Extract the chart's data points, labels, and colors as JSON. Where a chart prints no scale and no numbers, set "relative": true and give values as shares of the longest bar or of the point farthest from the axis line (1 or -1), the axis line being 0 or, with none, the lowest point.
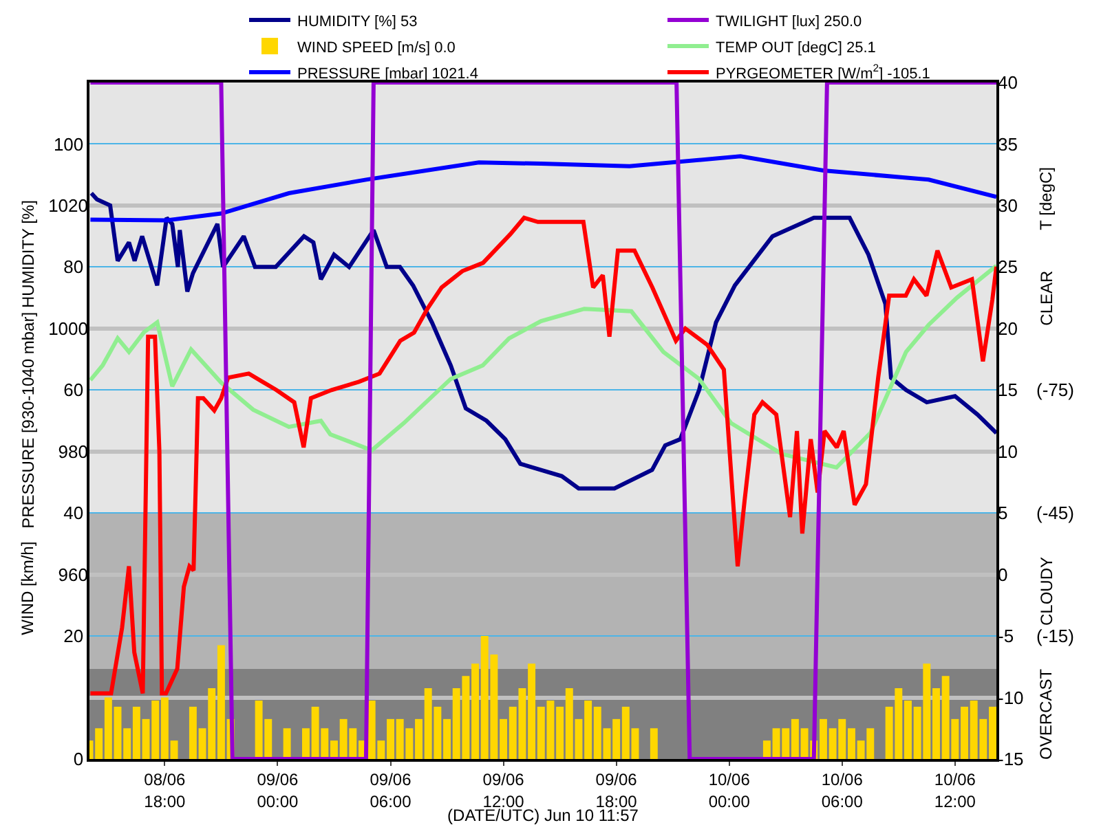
{
  "chart_data": [
    {
      "type": "line",
      "xlabel": "(DATE/UTC) Jun 10 11:57",
      "ylabel": "HUMIDITY [%]",
      "y2label": "T [degC]",
      "y3label": "PRESSURE [930-1040 mbar]",
      "annotations": [
        "WIND [km/h]"
      ],
      "xlim": [
        "--06-08T14:00",
        "--06-10T14:12"
      ],
      "xticks": [
        {
          "value": "--06-08T18:00",
          "label": "08/06\n18:00"
        },
        {
          "value": "--06-09T00:00",
          "label": "09/06\n00:00"
        },
        {
          "value": "--06-09T06:00",
          "label": "09/06\n06:00"
        },
        {
          "value": "--06-09T12:00",
          "label": "09/06\n12:00"
        },
        {
          "value": "--06-09T18:00",
          "label": "09/06\n18:00"
        },
        {
          "value": "--06-10T00:00",
          "label": "10/06\n00:00"
        },
        {
          "value": "--06-10T06:00",
          "label": "10/06\n06:00"
        },
        {
          "value": "--06-10T12:00",
          "label": "10/06\n12:00"
        }
      ],
      "ylim": [
        0,
        110
      ],
      "yticks": [
        0,
        20,
        40,
        60,
        80,
        100
      ],
      "y2lim": [
        -15,
        40
      ],
      "y2ticks": [
        -15,
        -10,
        -5,
        0,
        5,
        10,
        15,
        20,
        25,
        30,
        35,
        40
      ],
      "y3lim": [
        930,
        1040
      ],
      "y3ticks": [
        {
          "value": 940,
          "label": null
        },
        960,
        980,
        1000,
        1020
      ],
      "grid": "y",
      "legend": "top",
      "marker": "none",
      "line_style": "solid",
      "series": [
        {
          "name": "HUMIDITY [%] 53",
          "color": "#00008b",
          "x": [
            "--06-08T14:06",
            "--06-08T14:24",
            "--06-08T15:06",
            "--06-08T15:30",
            "--06-08T16:06",
            "--06-08T16:24",
            "--06-08T16:48",
            "--06-08T17:36",
            "--06-08T18:06",
            "--06-08T18:24",
            "--06-08T18:42",
            "--06-08T18:48",
            "--06-08T19:12",
            "--06-08T19:30",
            "--06-08T20:48",
            "--06-08T21:06",
            "--06-08T22:12",
            "--06-08T22:48",
            "--06-08T23:54",
            "--06-09T01:24",
            "--06-09T01:54",
            "--06-09T02:18",
            "--06-09T03:00",
            "--06-09T03:48",
            "--06-09T05:06",
            "--06-09T05:48",
            "--06-09T06:30",
            "--06-09T07:12",
            "--06-09T08:12",
            "--06-09T09:12",
            "--06-09T10:00",
            "--06-09T11:06",
            "--06-09T12:06",
            "--06-09T12:54",
            "--06-09T14:00",
            "--06-09T15:06",
            "--06-09T16:00",
            "--06-09T17:54",
            "--06-09T19:54",
            "--06-09T20:36",
            "--06-09T21:24",
            "--06-09T22:24",
            "--06-09T23:18",
            "--06-10T00:18",
            "--06-10T01:18",
            "--06-10T02:18",
            "--06-10T04:30",
            "--06-10T06:24",
            "--06-10T07:24",
            "--06-10T08:18",
            "--06-10T08:36",
            "--06-10T09:24",
            "--06-10T10:30",
            "--06-10T12:00",
            "--06-10T13:12",
            "--06-10T14:12"
          ],
          "values": [
            92,
            91,
            90,
            81,
            84,
            81,
            85,
            77,
            88,
            87,
            80,
            86,
            76,
            79,
            87,
            80,
            85,
            80,
            80,
            85,
            84,
            78,
            82,
            80,
            86,
            80,
            80,
            77,
            71,
            64,
            57,
            55,
            52,
            48,
            47,
            46,
            44,
            44,
            47,
            51,
            52,
            60,
            71,
            77,
            81,
            85,
            88,
            88,
            82,
            74,
            62,
            60,
            58,
            59,
            56,
            53
          ]
        },
        {
          "name": "WIND SPEED [m/s] 0.0",
          "type": "bar",
          "color": "#ffd700",
          "x": [
            "--06-08T14:00",
            "--06-08T14:30",
            "--06-08T15:00",
            "--06-08T15:30",
            "--06-08T16:00",
            "--06-08T16:30",
            "--06-08T17:00",
            "--06-08T17:30",
            "--06-08T18:00",
            "--06-08T18:30",
            "--06-08T19:00",
            "--06-08T19:30",
            "--06-08T20:00",
            "--06-08T20:30",
            "--06-08T21:00",
            "--06-08T21:30",
            "--06-08T22:00",
            "--06-08T22:30",
            "--06-08T23:00",
            "--06-08T23:30",
            "--06-09T00:00",
            "--06-09T00:30",
            "--06-09T01:00",
            "--06-09T01:30",
            "--06-09T02:00",
            "--06-09T02:30",
            "--06-09T03:00",
            "--06-09T03:30",
            "--06-09T04:00",
            "--06-09T04:30",
            "--06-09T05:00",
            "--06-09T05:30",
            "--06-09T06:00",
            "--06-09T06:30",
            "--06-09T07:00",
            "--06-09T07:30",
            "--06-09T08:00",
            "--06-09T08:30",
            "--06-09T09:00",
            "--06-09T09:30",
            "--06-09T10:00",
            "--06-09T10:30",
            "--06-09T11:00",
            "--06-09T11:30",
            "--06-09T12:00",
            "--06-09T12:30",
            "--06-09T13:00",
            "--06-09T13:30",
            "--06-09T14:00",
            "--06-09T14:30",
            "--06-09T15:00",
            "--06-09T15:30",
            "--06-09T16:00",
            "--06-09T16:30",
            "--06-09T17:00",
            "--06-09T17:30",
            "--06-09T18:00",
            "--06-09T18:30",
            "--06-09T19:00",
            "--06-09T19:30",
            "--06-09T20:00",
            "--06-09T20:30",
            "--06-09T21:00",
            "--06-09T21:30",
            "--06-09T22:00",
            "--06-09T22:30",
            "--06-09T23:00",
            "--06-09T23:30",
            "--06-10T00:00",
            "--06-10T00:30",
            "--06-10T01:00",
            "--06-10T01:30",
            "--06-10T02:00",
            "--06-10T02:30",
            "--06-10T03:00",
            "--06-10T03:30",
            "--06-10T04:00",
            "--06-10T04:30",
            "--06-10T05:00",
            "--06-10T05:30",
            "--06-10T06:00",
            "--06-10T06:30",
            "--06-10T07:00",
            "--06-10T07:30",
            "--06-10T08:00",
            "--06-10T08:30",
            "--06-10T09:00",
            "--06-10T09:30",
            "--06-10T10:00",
            "--06-10T10:30",
            "--06-10T11:00",
            "--06-10T11:30",
            "--06-10T12:00",
            "--06-10T12:30",
            "--06-10T13:00",
            "--06-10T13:30",
            "--06-10T14:00"
          ],
          "values": [
            3,
            5,
            10,
            8.5,
            5,
            8.5,
            6.5,
            9.5,
            10,
            3,
            0,
            8.5,
            5,
            11.5,
            18.5,
            6.5,
            0,
            0,
            9.5,
            6.5,
            0,
            5,
            0,
            5,
            8.5,
            5,
            3,
            6.5,
            5,
            3,
            9.5,
            3,
            6.5,
            6.5,
            5,
            6.5,
            11.5,
            8.5,
            6.5,
            11.5,
            13.5,
            15.5,
            20,
            17,
            6.5,
            8.5,
            11.5,
            15.5,
            8.5,
            9.5,
            8.5,
            11.5,
            6.5,
            9.5,
            8.5,
            5,
            6.5,
            8.5,
            5,
            0,
            5,
            0,
            0,
            0,
            0,
            0,
            0,
            0,
            0,
            0,
            0,
            0,
            3,
            5,
            5,
            6.5,
            5,
            3,
            6.5,
            5,
            6.5,
            5,
            3,
            5,
            0,
            8.5,
            11.5,
            9.5,
            8.5,
            15.5,
            11.5,
            13.5,
            6.5,
            8.5,
            9.5,
            6.5,
            8.5
          ]
        },
        {
          "name": "PRESSURE [mbar] 1021.4",
          "color": "#0000ff",
          "axis": "y3",
          "x": [
            "--06-08T14:03",
            "--06-08T18:06",
            "--06-08T21:00",
            "--06-09T00:36",
            "--06-09T04:42",
            "--06-09T10:42",
            "--06-09T14:00",
            "--06-09T18:42",
            "--06-10T00:36",
            "--06-10T05:00",
            "--06-10T10:36",
            "--06-10T14:12"
          ],
          "values": [
            1017.7,
            1017.6,
            1018.7,
            1022.0,
            1024.2,
            1027.0,
            1026.8,
            1026.4,
            1028.0,
            1025.7,
            1024.2,
            1021.4
          ]
        },
        {
          "name": "TEMP OUT [degC] 25.1",
          "color": "#90ee90",
          "axis": "y2",
          "x": [
            "--06-08T14:03",
            "--06-08T14:42",
            "--06-08T15:30",
            "--06-08T16:06",
            "--06-08T16:54",
            "--06-08T17:36",
            "--06-08T18:24",
            "--06-08T19:24",
            "--06-08T21:00",
            "--06-08T22:42",
            "--06-09T00:36",
            "--06-09T02:18",
            "--06-09T02:48",
            "--06-09T05:00",
            "--06-09T06:42",
            "--06-09T09:12",
            "--06-09T10:54",
            "--06-09T12:18",
            "--06-09T14:00",
            "--06-09T16:18",
            "--06-09T18:48",
            "--06-09T20:30",
            "--06-09T22:24",
            "--06-10T00:06",
            "--06-10T02:48",
            "--06-10T05:42",
            "--06-10T07:30",
            "--06-10T09:24",
            "--06-10T10:36",
            "--06-10T12:06",
            "--06-10T14:12"
          ],
          "values": [
            15.8,
            17.0,
            19.2,
            18.1,
            19.7,
            20.5,
            15.3,
            18.3,
            15.6,
            13.4,
            12.0,
            12.5,
            11.4,
            10.1,
            12.3,
            15.9,
            17.0,
            19.2,
            20.6,
            21.6,
            21.4,
            18.1,
            15.9,
            12.3,
            9.8,
            8.7,
            11.5,
            18.1,
            20.3,
            22.5,
            25.1
          ]
        }
      ]
    },
    {
      "type": "line",
      "xlim": [
        "--06-08T14:00",
        "--06-10T14:12"
      ],
      "tick_labels": "y",
      "ylim": [
        15,
        -150
      ],
      "yticks": [
        {
          "value": -75,
          "label": "(-75)"
        },
        {
          "value": -45,
          "label": "(-45)"
        },
        {
          "value": -15,
          "label": "(-15)"
        }
      ],
      "bands": [
        {
          "axis": "y",
          "from": -150,
          "to": -45,
          "label": "CLEAR",
          "color": "#e5e5e5"
        },
        {
          "axis": "y",
          "from": -45,
          "to": -7,
          "label": "CLOUDY",
          "color": "#b3b3b3"
        },
        {
          "axis": "y",
          "from": -7,
          "to": 15,
          "label": "OVERCAST",
          "color": "#808080"
        }
      ],
      "legend": "top",
      "marker": "none",
      "line_style": "solid",
      "series": [
        {
          "name": "PYRGEOMETER [W/m$^{2}$] -105.1",
          "color": "#ff0000",
          "x": [
            "--06-08T14:03",
            "--06-08T15:09",
            "--06-08T15:44",
            "--06-08T16:06",
            "--06-08T16:23",
            "--06-08T16:50",
            "--06-08T17:07",
            "--06-08T17:29",
            "--06-08T17:43",
            "--06-08T17:51",
            "--06-08T18:04",
            "--06-08T18:40",
            "--06-08T19:01",
            "--06-08T19:19",
            "--06-08T19:32",
            "--06-08T19:46",
            "--06-08T20:03",
            "--06-08T20:38",
            "--06-08T21:00",
            "--06-08T21:22",
            "--06-08T22:28",
            "--06-08T23:12",
            "--06-08T23:56",
            "--06-09T00:53",
            "--06-09T01:23",
            "--06-09T01:46",
            "--06-09T02:52",
            "--06-09T04:19",
            "--06-09T05:25",
            "--06-09T06:31",
            "--06-09T07:15",
            "--06-09T07:59",
            "--06-09T08:43",
            "--06-09T09:49",
            "--06-09T10:55",
            "--06-09T12:22",
            "--06-09T13:06",
            "--06-09T13:50",
            "--06-09T15:18",
            "--06-09T16:15",
            "--06-09T16:46",
            "--06-09T17:17",
            "--06-09T17:38",
            "--06-09T18:05",
            "--06-09T18:58",
            "--06-09T19:55",
            "--06-09T21:10",
            "--06-09T21:40",
            "--06-09T22:50",
            "--06-09T23:43",
            "--06-10T00:27",
            "--06-10T00:49",
            "--06-10T01:20",
            "--06-10T01:46",
            "--06-10T02:30",
            "--06-10T03:14",
            "--06-10T03:36",
            "--06-10T03:53",
            "--06-10T04:20",
            "--06-10T04:42",
            "--06-10T05:04",
            "--06-10T05:43",
            "--06-10T06:05",
            "--06-10T06:40",
            "--06-10T07:16",
            "--06-10T07:55",
            "--06-10T08:30",
            "--06-10T09:23",
            "--06-10T09:49",
            "--06-10T10:29",
            "--06-10T11:04",
            "--06-10T11:48",
            "--06-10T12:54",
            "--06-10T13:29",
            "--06-10T13:59",
            "--06-10T14:12"
          ],
          "values": [
            -1,
            -1,
            -17,
            -32,
            -11,
            -1,
            -88,
            -88,
            -60,
            -1,
            -1,
            -7,
            -27,
            -32,
            -31,
            -73,
            -73,
            -70,
            -73,
            -78,
            -79,
            -77,
            -75,
            -72,
            -61,
            -73,
            -75,
            -77,
            -79,
            -87,
            -89,
            -95,
            -100,
            -104,
            -106,
            -113,
            -117,
            -116,
            -116,
            -116,
            -100,
            -103,
            -88,
            -109,
            -109,
            -100,
            -87,
            -90,
            -86,
            -80,
            -32,
            -48,
            -69,
            -72,
            -69,
            -44,
            -65,
            -40,
            -63,
            -50,
            -65,
            -61,
            -65,
            -47,
            -52,
            -78,
            -98,
            -98,
            -102,
            -98,
            -109,
            -100,
            -102,
            -82,
            -97,
            -105.1
          ]
        }
      ]
    },
    {
      "type": "line",
      "relative": true,
      "xlim": [
        "--06-08T14:00",
        "--06-10T14:12"
      ],
      "tick_labels": false,
      "legend": "top",
      "marker": "none",
      "line_style": "solid",
      "series": [
        {
          "name": "TWILIGHT [lux] 250.0",
          "color": "#9400d3",
          "x": [
            "--06-08T14:03",
            "--06-08T21:00",
            "--06-08T21:36",
            "--06-09T04:42",
            "--06-09T05:06",
            "--06-09T21:12",
            "--06-09T21:54",
            "--06-10T04:30",
            "--06-10T05:12",
            "--06-10T14:12"
          ],
          "values": [
            1,
            1,
            0,
            0,
            1,
            1,
            0,
            0,
            1,
            1
          ]
        }
      ]
    }
  ]
}
